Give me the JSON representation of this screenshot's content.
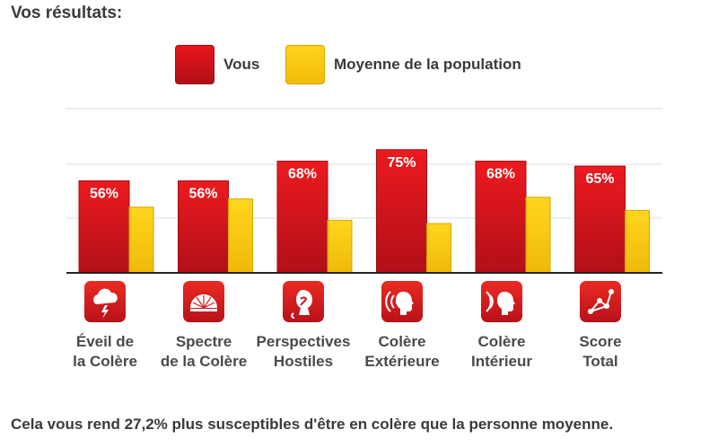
{
  "title": "Vos résultats:",
  "legend": {
    "you": "Vous",
    "average": "Moyenne de la population"
  },
  "colors": {
    "you": "#d8141c",
    "average": "#f7c719",
    "grid": "#dddddd",
    "axis": "#222222"
  },
  "chart_data": {
    "type": "bar",
    "categories": [
      [
        "Éveil de",
        "la Colère"
      ],
      [
        "Spectre",
        "de la Colère"
      ],
      [
        "Perspectives",
        "Hostiles"
      ],
      [
        "Colère",
        "Extérieure"
      ],
      [
        "Colère",
        "Intérieur"
      ],
      [
        "Score",
        "Total"
      ]
    ],
    "series": [
      {
        "name": "Vous",
        "values": [
          56,
          56,
          68,
          75,
          68,
          65
        ],
        "labels": [
          "56%",
          "56%",
          "68%",
          "75%",
          "68%",
          "65%"
        ]
      },
      {
        "name": "Moyenne de la population",
        "values": [
          40,
          45,
          32,
          30,
          46,
          38
        ]
      }
    ],
    "ylim": [
      0,
      100
    ],
    "grid": true,
    "legend_position": "top"
  },
  "icons": [
    "storm-cloud-icon",
    "gauge-icon",
    "cobra-icon",
    "outward-voice-icon",
    "inward-voice-icon",
    "graph-nodes-icon"
  ],
  "footer": "Cela vous rend 27,2% plus susceptibles d'être en colère que la personne moyenne."
}
